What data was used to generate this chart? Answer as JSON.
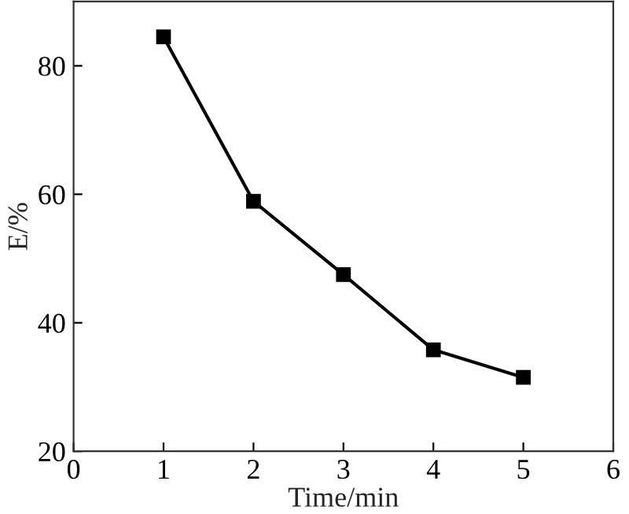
{
  "chart_data": {
    "type": "line",
    "xlabel": "Time/min",
    "ylabel": "E/%",
    "x": [
      1,
      2,
      3,
      4,
      5
    ],
    "series": [
      {
        "color": "#000000",
        "values": [
          84.5,
          58.9,
          47.5,
          35.8,
          31.5
        ]
      }
    ],
    "marker": "square",
    "line_style": "solid",
    "xlim": [
      0,
      6
    ],
    "xticks": [
      0,
      1,
      2,
      3,
      4,
      5,
      6
    ],
    "ylim": [
      20,
      90
    ],
    "yticks": [
      20,
      40,
      60,
      80
    ],
    "grid": false,
    "legend": false
  }
}
